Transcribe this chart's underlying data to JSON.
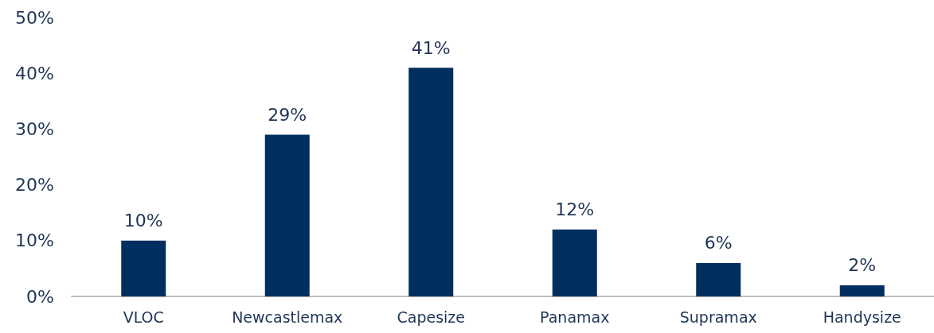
{
  "chart_data": {
    "type": "bar",
    "categories": [
      "VLOC",
      "Newcastlemax",
      "Capesize",
      "Panamax",
      "Supramax",
      "Handysize"
    ],
    "values": [
      10,
      29,
      41,
      12,
      6,
      2
    ],
    "value_labels": [
      "10%",
      "29%",
      "41%",
      "12%",
      "6%",
      "2%"
    ],
    "color": "#002f5f",
    "ylim": [
      0,
      50
    ],
    "yticks": [
      {
        "value": 0,
        "label": "0%"
      },
      {
        "value": 10,
        "label": "10%"
      },
      {
        "value": 20,
        "label": "20%"
      },
      {
        "value": 30,
        "label": "30%"
      },
      {
        "value": 40,
        "label": "40%"
      },
      {
        "value": 50,
        "label": "50%"
      }
    ],
    "grid": false
  }
}
